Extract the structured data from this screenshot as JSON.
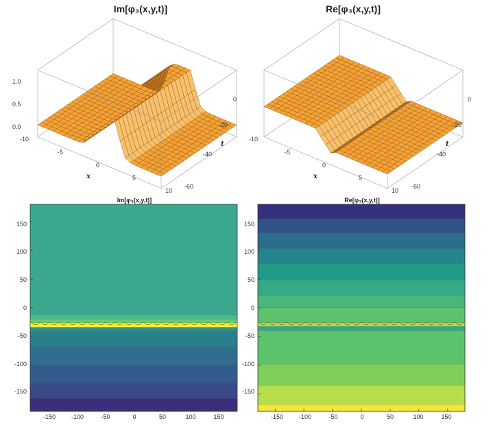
{
  "chart_data": [
    {
      "type": "surface3d",
      "title": "Im[φ₃(x,y,t)]",
      "xlabel": "x",
      "ylabel": "t",
      "xlim": [
        -10,
        10
      ],
      "tlim": [
        -60,
        0
      ],
      "zlim": [
        0,
        1
      ],
      "x_ticks": [
        "-10",
        "-5",
        "0",
        "5",
        "10"
      ],
      "t_ticks": [
        "0",
        "-20",
        "-40",
        "-60"
      ],
      "z_ticks": [
        "1.0",
        "0.5",
        "0.0"
      ],
      "description_values": {
        "baseline": 0.0,
        "peak": 1.0,
        "peak_x": 0
      }
    },
    {
      "type": "surface3d",
      "title": "Re[φ₃(x,y,t)]",
      "xlabel": "x",
      "ylabel": "t",
      "xlim": [
        -10,
        10
      ],
      "tlim": [
        -60,
        0
      ],
      "x_ticks": [
        "-10",
        "-5",
        "0",
        "5",
        "10"
      ],
      "t_ticks": [
        "0",
        "-20",
        "-40",
        "-60"
      ],
      "z_ticks": []
    },
    {
      "type": "heatmap",
      "title": "Im[φ₃(x,y,t)]",
      "xlim": [
        -180,
        180
      ],
      "ylim": [
        -180,
        180
      ],
      "x_ticks": [
        "-150",
        "-100",
        "-50",
        "0",
        "50",
        "100",
        "150"
      ],
      "y_ticks": [
        "150",
        "100",
        "50",
        "0",
        "-50",
        "-100",
        "-150"
      ],
      "bands": [
        {
          "y0": 180,
          "y1": -12,
          "color": "#3aa88f"
        },
        {
          "y0": -12,
          "y1": -20,
          "color": "#49b98a"
        },
        {
          "y0": -20,
          "y1": -26,
          "color": "#6acb6c"
        },
        {
          "y0": -26,
          "y1": -34,
          "color": "#f1ec35"
        },
        {
          "y0": -34,
          "y1": -40,
          "color": "#2f9689"
        },
        {
          "y0": -40,
          "y1": -68,
          "color": "#2a7f8c"
        },
        {
          "y0": -68,
          "y1": -100,
          "color": "#2e6d8e"
        },
        {
          "y0": -100,
          "y1": -130,
          "color": "#335c8c"
        },
        {
          "y0": -130,
          "y1": -158,
          "color": "#3a4a89"
        },
        {
          "y0": -158,
          "y1": -180,
          "color": "#3b2f7a"
        }
      ]
    },
    {
      "type": "heatmap",
      "title": "Re[φ₃(x,y,t)]",
      "xlim": [
        -180,
        180
      ],
      "ylim": [
        -180,
        180
      ],
      "x_ticks": [
        "-150",
        "-100",
        "-50",
        "0",
        "50",
        "100",
        "150"
      ],
      "y_ticks": [
        "150",
        "100",
        "50",
        "0",
        "-50",
        "-100",
        "-150"
      ],
      "bands": [
        {
          "y0": 180,
          "y1": 155,
          "color": "#35307d"
        },
        {
          "y0": 155,
          "y1": 130,
          "color": "#2f5289"
        },
        {
          "y0": 130,
          "y1": 103,
          "color": "#2a6d8d"
        },
        {
          "y0": 103,
          "y1": 76,
          "color": "#24868c"
        },
        {
          "y0": 76,
          "y1": 48,
          "color": "#229a88"
        },
        {
          "y0": 48,
          "y1": 22,
          "color": "#35aa84"
        },
        {
          "y0": 22,
          "y1": 0,
          "color": "#49b779"
        },
        {
          "y0": 0,
          "y1": -26,
          "color": "#5cc26b"
        },
        {
          "y0": -26,
          "y1": -32,
          "color": "#c5de3a"
        },
        {
          "y0": -32,
          "y1": -40,
          "color": "#3aa784"
        },
        {
          "y0": -40,
          "y1": -98,
          "color": "#5cc26b"
        },
        {
          "y0": -98,
          "y1": -135,
          "color": "#7ecf5b"
        },
        {
          "y0": -135,
          "y1": -168,
          "color": "#b8dd4a"
        },
        {
          "y0": -168,
          "y1": -180,
          "color": "#f2e73a"
        }
      ]
    }
  ]
}
